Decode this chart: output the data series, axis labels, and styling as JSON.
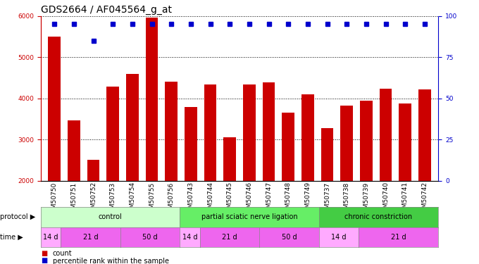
{
  "title": "GDS2664 / AF045564_g_at",
  "samples": [
    "GSM50750",
    "GSM50751",
    "GSM50752",
    "GSM50753",
    "GSM50754",
    "GSM50755",
    "GSM50756",
    "GSM50743",
    "GSM50744",
    "GSM50745",
    "GSM50746",
    "GSM50747",
    "GSM50748",
    "GSM50749",
    "GSM50737",
    "GSM50738",
    "GSM50739",
    "GSM50740",
    "GSM50741",
    "GSM50742"
  ],
  "counts": [
    5490,
    3460,
    2510,
    4280,
    4600,
    5950,
    4400,
    3790,
    4340,
    3060,
    4330,
    4390,
    3660,
    4090,
    3270,
    3820,
    3940,
    4240,
    3870,
    4220
  ],
  "percentiles": [
    95,
    95,
    85,
    95,
    95,
    95,
    95,
    95,
    95,
    95,
    95,
    95,
    95,
    95,
    95,
    95,
    95,
    95,
    95,
    95
  ],
  "bar_color": "#cc0000",
  "dot_color": "#0000cc",
  "ylim_left": [
    2000,
    6000
  ],
  "ylim_right": [
    0,
    100
  ],
  "yticks_left": [
    2000,
    3000,
    4000,
    5000,
    6000
  ],
  "yticks_right": [
    0,
    25,
    50,
    75,
    100
  ],
  "protocol_groups": [
    {
      "label": "control",
      "start": 0,
      "end": 6,
      "color": "#ccffcc"
    },
    {
      "label": "partial sciatic nerve ligation",
      "start": 7,
      "end": 13,
      "color": "#66ee66"
    },
    {
      "label": "chronic constriction",
      "start": 14,
      "end": 19,
      "color": "#44cc44"
    }
  ],
  "time_groups": [
    {
      "label": "14 d",
      "start": 0,
      "end": 0,
      "color": "#ffaaff"
    },
    {
      "label": "21 d",
      "start": 1,
      "end": 3,
      "color": "#ee66ee"
    },
    {
      "label": "50 d",
      "start": 4,
      "end": 6,
      "color": "#ee66ee"
    },
    {
      "label": "14 d",
      "start": 7,
      "end": 7,
      "color": "#ffaaff"
    },
    {
      "label": "21 d",
      "start": 8,
      "end": 10,
      "color": "#ee66ee"
    },
    {
      "label": "50 d",
      "start": 11,
      "end": 13,
      "color": "#ee66ee"
    },
    {
      "label": "14 d",
      "start": 14,
      "end": 15,
      "color": "#ffaaff"
    },
    {
      "label": "21 d",
      "start": 16,
      "end": 19,
      "color": "#ee66ee"
    }
  ],
  "bg_color": "#ffffff",
  "grid_color": "#000000",
  "title_fontsize": 10,
  "tick_fontsize": 6.5,
  "label_fontsize": 8
}
